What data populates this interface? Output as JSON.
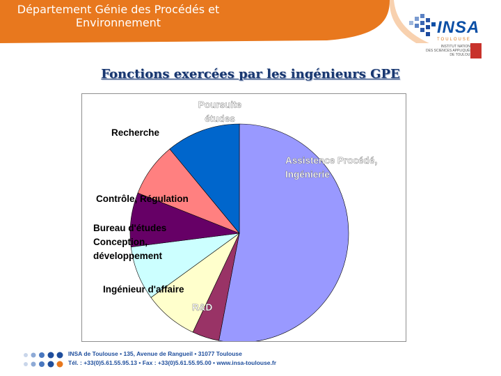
{
  "header": {
    "department_line1": "Département Génie des Procédés et",
    "department_line2": "Environnement",
    "band_color": "#e8781e"
  },
  "logo": {
    "word": "INSA",
    "sub": "TOULOUSE",
    "lines": [
      "INSTITUT NATIONAL",
      "DES SCIENCES APPLIQUÉES",
      "DE TOULOUSE"
    ],
    "icon": "insa-dot-logo-icon"
  },
  "slide": {
    "title": "Fonctions exercées par les ingénieurs GPE"
  },
  "chart_data": {
    "type": "pie",
    "title": "",
    "slices": [
      {
        "label": "Assistence Procédé, Ingénierie",
        "value": 53,
        "color": "#9999ff"
      },
      {
        "label": "R&D",
        "value": 4,
        "color": "#993366"
      },
      {
        "label": "Ingénieur d'affaire",
        "value": 8,
        "color": "#ffffcc"
      },
      {
        "label": "Bureau d'études Conception, développement",
        "value": 8,
        "color": "#ccffff"
      },
      {
        "label": "Contrôle, Régulation",
        "value": 8,
        "color": "#660066"
      },
      {
        "label": "Recherche",
        "value": 8,
        "color": "#ff8080"
      },
      {
        "label": "Poursuite études",
        "value": 11,
        "color": "#0066cc"
      }
    ],
    "start_angle_deg": 0,
    "direction": "clockwise",
    "legend": "none"
  },
  "footer": {
    "line1": "INSA de Toulouse • 135, Avenue de Rangueil • 31077 Toulouse",
    "line2": "Tél. : +33(0)5.61.55.95.13 • Fax : +33(0)5.61.55.95.00 • www.insa-toulouse.fr",
    "dot_colors": [
      "#c9d6ea",
      "#8eaad6",
      "#4a78bf",
      "#1f4e9c"
    ]
  }
}
